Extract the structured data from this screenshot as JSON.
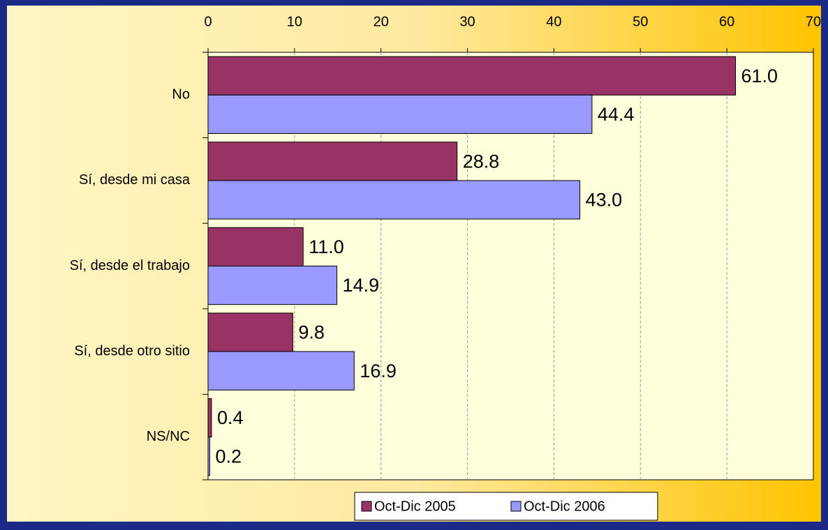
{
  "chart_data": {
    "type": "bar",
    "orientation": "horizontal",
    "categories": [
      "No",
      "Sí, desde mi casa",
      "Sí, desde el trabajo",
      "Sí, desde otro sitio",
      "NS/NC"
    ],
    "series": [
      {
        "name": "Oct-Dic 2005",
        "color": "#993366",
        "values": [
          61.0,
          28.8,
          11.0,
          9.8,
          0.4
        ],
        "value_labels": [
          "61.0",
          "28.8",
          "11.0",
          "9.8",
          "0.4"
        ]
      },
      {
        "name": "Oct-Dic 2006",
        "color": "#9999ff",
        "values": [
          44.4,
          43.0,
          14.9,
          16.9,
          0.2
        ],
        "value_labels": [
          "44.4",
          "43.0",
          "14.9",
          "16.9",
          "0.2"
        ]
      }
    ],
    "xlim": [
      0,
      70
    ],
    "xticks": [
      0,
      10,
      20,
      30,
      40,
      50,
      60,
      70
    ],
    "grid": true,
    "legend": "bottom"
  }
}
